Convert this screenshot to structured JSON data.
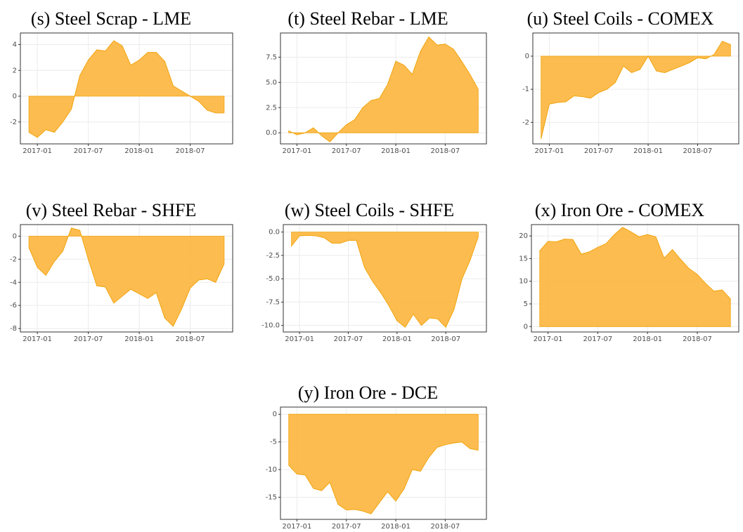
{
  "chart_data": [
    {
      "type": "area",
      "title": "(s) Steel Scrap - LME",
      "color": "#fdb53c",
      "edge_color": "#f0a30a",
      "grid": true,
      "x": [
        "2016-12",
        "2017-01",
        "2017-02",
        "2017-03",
        "2017-04",
        "2017-05",
        "2017-06",
        "2017-07",
        "2017-08",
        "2017-09",
        "2017-10",
        "2017-11",
        "2017-12",
        "2018-01",
        "2018-02",
        "2018-03",
        "2018-04",
        "2018-05",
        "2018-06",
        "2018-07",
        "2018-08",
        "2018-09",
        "2018-10",
        "2018-11"
      ],
      "values": [
        -2.8,
        -3.2,
        -2.6,
        -2.8,
        -2.0,
        -1.0,
        1.6,
        2.8,
        3.6,
        3.5,
        4.3,
        3.9,
        2.4,
        2.8,
        3.4,
        3.4,
        2.7,
        0.8,
        0.4,
        0.0,
        -0.4,
        -1.1,
        -1.3,
        -1.3
      ],
      "xlim": [
        "2016-11",
        "2018-12"
      ],
      "xticks": [
        "2017-01",
        "2017-07",
        "2018-01",
        "2018-07"
      ],
      "ylim": [
        -3.7,
        4.9
      ],
      "yticks": [
        -2,
        0,
        2,
        4
      ]
    },
    {
      "type": "area",
      "title": "(t) Steel Rebar - LME",
      "color": "#fdb53c",
      "edge_color": "#f0a30a",
      "grid": true,
      "x": [
        "2016-12",
        "2017-01",
        "2017-02",
        "2017-03",
        "2017-04",
        "2017-05",
        "2017-06",
        "2017-07",
        "2017-08",
        "2017-09",
        "2017-10",
        "2017-11",
        "2017-12",
        "2018-01",
        "2018-02",
        "2018-03",
        "2018-04",
        "2018-05",
        "2018-06",
        "2018-07",
        "2018-08",
        "2018-09",
        "2018-10",
        "2018-11"
      ],
      "values": [
        0.2,
        -0.2,
        0.0,
        0.5,
        -0.3,
        -0.9,
        0.0,
        0.8,
        1.3,
        2.5,
        3.2,
        3.4,
        4.8,
        7.1,
        6.7,
        5.8,
        8.1,
        9.5,
        8.7,
        8.8,
        8.3,
        7.1,
        5.8,
        4.3
      ],
      "xlim": [
        "2016-11",
        "2018-12"
      ],
      "xticks": [
        "2017-01",
        "2017-07",
        "2018-01",
        "2018-07"
      ],
      "ylim": [
        -1.1,
        9.9
      ],
      "yticks": [
        {
          "value": 0,
          "label": "0.0"
        },
        {
          "value": 2.5,
          "label": "2.5"
        },
        {
          "value": 5,
          "label": "5.0"
        },
        {
          "value": 7.5,
          "label": "7.5"
        }
      ]
    },
    {
      "type": "area",
      "title": "(u) Steel Coils - COMEX",
      "color": "#fdb53c",
      "edge_color": "#f0a30a",
      "grid": true,
      "x": [
        "2016-12",
        "2017-01",
        "2017-02",
        "2017-03",
        "2017-04",
        "2017-05",
        "2017-06",
        "2017-07",
        "2017-08",
        "2017-09",
        "2017-10",
        "2017-11",
        "2017-12",
        "2018-01",
        "2018-02",
        "2018-03",
        "2018-04",
        "2018-05",
        "2018-06",
        "2018-07",
        "2018-08",
        "2018-09",
        "2018-10",
        "2018-11"
      ],
      "values": [
        -2.5,
        -1.45,
        -1.4,
        -1.38,
        -1.2,
        -1.22,
        -1.27,
        -1.1,
        -1.0,
        -0.8,
        -0.3,
        -0.5,
        -0.4,
        0.0,
        -0.45,
        -0.5,
        -0.4,
        -0.3,
        -0.2,
        -0.05,
        -0.08,
        0.05,
        0.45,
        0.35
      ],
      "xlim": [
        "2016-11",
        "2018-12"
      ],
      "xticks": [
        "2017-01",
        "2017-07",
        "2018-01",
        "2018-07"
      ],
      "ylim": [
        -2.65,
        0.7
      ],
      "yticks": [
        -2,
        -1,
        0
      ]
    },
    {
      "type": "area",
      "title": "(v) Steel Rebar - SHFE",
      "color": "#fdb53c",
      "edge_color": "#f0a30a",
      "grid": true,
      "x": [
        "2016-12",
        "2017-01",
        "2017-02",
        "2017-03",
        "2017-04",
        "2017-05",
        "2017-06",
        "2017-07",
        "2017-08",
        "2017-09",
        "2017-10",
        "2017-11",
        "2017-12",
        "2018-01",
        "2018-02",
        "2018-03",
        "2018-04",
        "2018-05",
        "2018-06",
        "2018-07",
        "2018-08",
        "2018-09",
        "2018-10",
        "2018-11"
      ],
      "values": [
        -1.0,
        -2.7,
        -3.4,
        -2.2,
        -1.3,
        0.7,
        0.5,
        -2.0,
        -4.3,
        -4.4,
        -5.8,
        -5.2,
        -4.6,
        -5.0,
        -5.4,
        -4.9,
        -7.1,
        -7.8,
        -6.3,
        -4.5,
        -3.8,
        -3.7,
        -4.0,
        -2.4
      ],
      "xlim": [
        "2016-11",
        "2018-12"
      ],
      "xticks": [
        "2017-01",
        "2017-07",
        "2018-01",
        "2018-07"
      ],
      "ylim": [
        -8.3,
        1.0
      ],
      "yticks": [
        -8,
        -6,
        -4,
        -2,
        0
      ]
    },
    {
      "type": "area",
      "title": "(w) Steel Coils - SHFE",
      "color": "#fdb53c",
      "edge_color": "#f0a30a",
      "grid": true,
      "x": [
        "2016-12",
        "2017-01",
        "2017-02",
        "2017-03",
        "2017-04",
        "2017-05",
        "2017-06",
        "2017-07",
        "2017-08",
        "2017-09",
        "2017-10",
        "2017-11",
        "2017-12",
        "2018-01",
        "2018-02",
        "2018-03",
        "2018-04",
        "2018-05",
        "2018-06",
        "2018-07",
        "2018-08",
        "2018-09",
        "2018-10",
        "2018-11"
      ],
      "values": [
        -1.5,
        -0.4,
        -0.35,
        -0.4,
        -0.6,
        -1.2,
        -1.2,
        -0.9,
        -0.9,
        -3.8,
        -5.3,
        -6.5,
        -7.9,
        -9.5,
        -10.2,
        -8.8,
        -10.0,
        -9.2,
        -9.3,
        -10.2,
        -8.3,
        -5.0,
        -3.0,
        -0.5
      ],
      "xlim": [
        "2016-11",
        "2018-12"
      ],
      "xticks": [
        "2017-01",
        "2017-07",
        "2018-01",
        "2018-07"
      ],
      "ylim": [
        -10.7,
        0.8
      ],
      "yticks": [
        {
          "value": -10,
          "label": "-10.0"
        },
        {
          "value": -7.5,
          "label": "-7.5"
        },
        {
          "value": -5,
          "label": "-5.0"
        },
        {
          "value": -2.5,
          "label": "-2.5"
        },
        {
          "value": 0,
          "label": "0.0"
        }
      ]
    },
    {
      "type": "area",
      "title": "(x) Iron Ore - COMEX",
      "color": "#fdb53c",
      "edge_color": "#f0a30a",
      "grid": true,
      "x": [
        "2016-12",
        "2017-01",
        "2017-02",
        "2017-03",
        "2017-04",
        "2017-05",
        "2017-06",
        "2017-07",
        "2017-08",
        "2017-09",
        "2017-10",
        "2017-11",
        "2017-12",
        "2018-01",
        "2018-02",
        "2018-03",
        "2018-04",
        "2018-05",
        "2018-06",
        "2018-07",
        "2018-08",
        "2018-09",
        "2018-10",
        "2018-11"
      ],
      "values": [
        16.7,
        18.8,
        18.7,
        19.3,
        19.2,
        16.0,
        16.5,
        17.5,
        18.3,
        20.3,
        21.9,
        20.9,
        19.8,
        20.3,
        19.8,
        15.1,
        17.0,
        14.8,
        12.8,
        11.5,
        9.5,
        7.8,
        8.1,
        6.1
      ],
      "xlim": [
        "2016-11",
        "2018-12"
      ],
      "xticks": [
        "2017-01",
        "2017-07",
        "2018-01",
        "2018-07"
      ],
      "ylim": [
        -1.2,
        22.5
      ],
      "yticks": [
        0,
        5,
        10,
        15,
        20
      ]
    },
    {
      "type": "area",
      "title": "(y) Iron Ore - DCE",
      "color": "#fdb53c",
      "edge_color": "#f0a30a",
      "grid": true,
      "x": [
        "2016-12",
        "2017-01",
        "2017-02",
        "2017-03",
        "2017-04",
        "2017-05",
        "2017-06",
        "2017-07",
        "2017-08",
        "2017-09",
        "2017-10",
        "2017-11",
        "2017-12",
        "2018-01",
        "2018-02",
        "2018-03",
        "2018-04",
        "2018-05",
        "2018-06",
        "2018-07",
        "2018-08",
        "2018-09",
        "2018-10",
        "2018-11"
      ],
      "values": [
        -9.2,
        -10.8,
        -11.0,
        -13.4,
        -13.8,
        -12.3,
        -16.3,
        -17.3,
        -17.2,
        -17.5,
        -18.0,
        -16.0,
        -14.0,
        -15.7,
        -13.5,
        -10.0,
        -10.3,
        -7.8,
        -6.0,
        -5.5,
        -5.2,
        -5.0,
        -6.2,
        -6.5
      ],
      "xlim": [
        "2016-11",
        "2018-12"
      ],
      "xticks": [
        "2017-01",
        "2017-07",
        "2018-01",
        "2018-07"
      ],
      "ylim": [
        -19,
        1.3
      ],
      "yticks": [
        -15,
        -10,
        -5,
        0
      ]
    }
  ]
}
